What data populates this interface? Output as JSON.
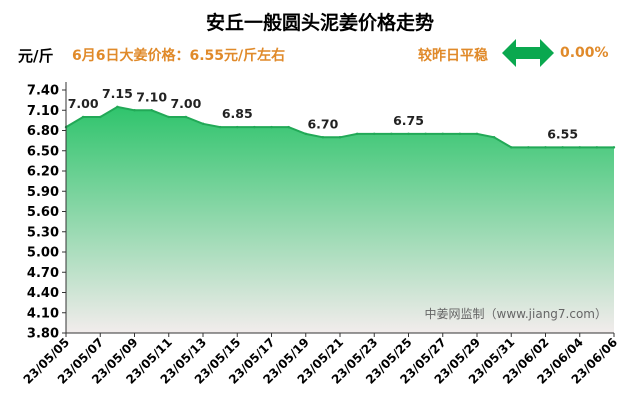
{
  "header": {
    "title": "安丘一般圆头泥姜价格走势",
    "unit": "元/斤",
    "price_note": "6月6日大姜价格：6.55元/斤左右",
    "compare_label": "较昨日平稳",
    "change_value": "0.00%"
  },
  "watermark": "中姜网监制（www.jiang7.com）",
  "colors": {
    "fill_top": "#2fc46c",
    "fill_bottom": "#f2ecec",
    "line": "#22a957",
    "accent": "#e08a2a",
    "arrow": "#0aa84f"
  },
  "chart_data": {
    "type": "area",
    "title": "安丘一般圆头泥姜价格走势",
    "ylabel": "元/斤",
    "xlabel": "",
    "ylim": [
      3.8,
      7.4
    ],
    "yticks": [
      "7.40",
      "7.10",
      "6.80",
      "6.50",
      "6.20",
      "5.90",
      "5.60",
      "5.30",
      "5.00",
      "4.70",
      "4.40",
      "4.10",
      "3.80"
    ],
    "x": [
      "23/05/05",
      "23/05/06",
      "23/05/07",
      "23/05/08",
      "23/05/09",
      "23/05/10",
      "23/05/11",
      "23/05/12",
      "23/05/13",
      "23/05/14",
      "23/05/15",
      "23/05/16",
      "23/05/17",
      "23/05/18",
      "23/05/19",
      "23/05/20",
      "23/05/21",
      "23/05/22",
      "23/05/23",
      "23/05/24",
      "23/05/25",
      "23/05/26",
      "23/05/27",
      "23/05/28",
      "23/05/29",
      "23/05/30",
      "23/05/31",
      "23/06/01",
      "23/06/02",
      "23/06/03",
      "23/06/04",
      "23/06/05",
      "23/06/06"
    ],
    "xtick_labels": [
      "23/05/05",
      "23/05/07",
      "23/05/09",
      "23/05/11",
      "23/05/13",
      "23/05/15",
      "23/05/17",
      "23/05/19",
      "23/05/21",
      "23/05/23",
      "23/05/25",
      "23/05/27",
      "23/05/29",
      "23/05/31",
      "23/06/02",
      "23/06/04",
      "23/06/06"
    ],
    "values": [
      6.85,
      7.0,
      7.0,
      7.15,
      7.1,
      7.1,
      7.0,
      7.0,
      6.9,
      6.85,
      6.85,
      6.85,
      6.85,
      6.85,
      6.75,
      6.7,
      6.7,
      6.75,
      6.75,
      6.75,
      6.75,
      6.75,
      6.75,
      6.75,
      6.75,
      6.7,
      6.55,
      6.55,
      6.55,
      6.55,
      6.55,
      6.55,
      6.55
    ],
    "data_labels": [
      {
        "x": "23/05/06",
        "text": "7.00"
      },
      {
        "x": "23/05/08",
        "text": "7.15"
      },
      {
        "x": "23/05/10",
        "text": "7.10"
      },
      {
        "x": "23/05/12",
        "text": "7.00"
      },
      {
        "x": "23/05/15",
        "text": "6.85"
      },
      {
        "x": "23/05/20",
        "text": "6.70"
      },
      {
        "x": "23/05/25",
        "text": "6.75"
      },
      {
        "x": "23/06/03",
        "text": "6.55"
      }
    ],
    "grid": false,
    "legend": "none"
  }
}
